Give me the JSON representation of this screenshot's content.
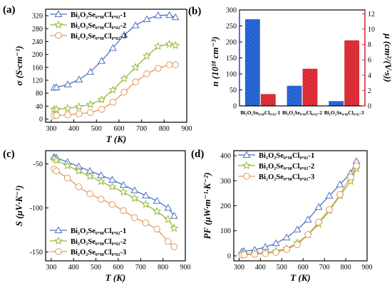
{
  "colors": {
    "blue": "#4a72c6",
    "green": "#9ab83a",
    "orange": "#e09a5e",
    "bar_blue": "#1f5fd0",
    "bar_red": "#d9262e",
    "axis": "#000000",
    "right_axis": "#d9262e",
    "left_axis_bar": "#2255cc"
  },
  "chart_data": [
    {
      "panel": "(a)",
      "type": "line",
      "xlabel": "T (K)",
      "ylabel": "σ (S·cm⁻¹)",
      "xlim": [
        275,
        900
      ],
      "ylim": [
        -10,
        340
      ],
      "xticks": [
        300,
        400,
        500,
        600,
        700,
        800,
        900
      ],
      "yticks": [
        0,
        40,
        80,
        120,
        160,
        200,
        240,
        280,
        320
      ],
      "legend_position": "top-left",
      "series": [
        {
          "name": "Bi₂O₂Se₀.₉₈Cl₀.₀₂-1",
          "color": "blue",
          "marker": "triangle",
          "x": [
            313,
            323,
            373,
            423,
            473,
            523,
            573,
            623,
            673,
            723,
            773,
            823,
            850
          ],
          "y": [
            97,
            98,
            107,
            122,
            146,
            180,
            220,
            260,
            290,
            309,
            321,
            322,
            315
          ]
        },
        {
          "name": "Bi₂O₂Se₀.₉₈Cl₀.₀₂-2",
          "color": "green",
          "marker": "star",
          "x": [
            313,
            323,
            373,
            423,
            473,
            523,
            573,
            623,
            673,
            723,
            773,
            823,
            850
          ],
          "y": [
            30,
            30,
            33,
            38,
            45,
            60,
            90,
            125,
            160,
            195,
            225,
            232,
            228
          ]
        },
        {
          "name": "Bi₂O₂Se₀.₉₈Cl₀.₀₂-3",
          "color": "orange",
          "marker": "circle",
          "x": [
            313,
            323,
            373,
            423,
            473,
            523,
            573,
            623,
            673,
            723,
            773,
            823,
            850
          ],
          "y": [
            10,
            11,
            13,
            16,
            20,
            30,
            52,
            83,
            115,
            140,
            157,
            168,
            168
          ]
        }
      ]
    },
    {
      "panel": "(b)",
      "type": "bar",
      "ylabel": "n (10¹⁸ cm⁻³)",
      "y2label": "μ (cm²/(V·s))",
      "categories": [
        "Bi₂O₂Se₀.₉₈Cl₀.₀₂-1",
        "Bi₂O₂Se₀.₉₈Cl₀.₀₂-2",
        "Bi₂O₂Se₀.₉₈Cl₀.₀₂-3"
      ],
      "ylim": [
        0,
        300
      ],
      "y2lim": [
        0,
        12.5
      ],
      "yticks": [
        0,
        50,
        100,
        150,
        200,
        250,
        300
      ],
      "y2ticks": [
        0,
        2,
        4,
        6,
        8,
        10,
        12
      ],
      "series": [
        {
          "name": "n",
          "color": "bar_blue",
          "axis": "left",
          "values": [
            270,
            62,
            14
          ]
        },
        {
          "name": "μ",
          "color": "bar_red",
          "axis": "right",
          "values": [
            1.5,
            4.8,
            8.5
          ]
        }
      ]
    },
    {
      "panel": "(c)",
      "type": "line",
      "xlabel": "T (K)",
      "ylabel": "S (μV·K⁻¹)",
      "xlim": [
        275,
        900
      ],
      "ylim": [
        -160,
        -35
      ],
      "xticks": [
        300,
        400,
        500,
        600,
        700,
        800,
        900
      ],
      "yticks": [
        -150,
        -100,
        -50
      ],
      "legend_position": "bottom-left",
      "series": [
        {
          "name": "Bi₂O₂Se₀.₉₈Cl₀.₀₂-1",
          "color": "blue",
          "marker": "triangle",
          "x": [
            313,
            323,
            373,
            423,
            473,
            523,
            573,
            623,
            673,
            723,
            773,
            823,
            850
          ],
          "y": [
            -42,
            -43,
            -48,
            -53,
            -58,
            -63,
            -68,
            -74,
            -80,
            -86,
            -92,
            -100,
            -109
          ]
        },
        {
          "name": "Bi₂O₂Se₀.₉₈Cl₀.₀₂-2",
          "color": "green",
          "marker": "star",
          "x": [
            313,
            323,
            373,
            423,
            473,
            523,
            573,
            623,
            673,
            723,
            773,
            823,
            850
          ],
          "y": [
            -44,
            -46,
            -52,
            -58,
            -64,
            -70,
            -76,
            -82,
            -89,
            -96,
            -104,
            -113,
            -123
          ]
        },
        {
          "name": "Bi₂O₂Se₀.₉₈Cl₀.₀₂-3",
          "color": "orange",
          "marker": "circle",
          "x": [
            313,
            323,
            373,
            423,
            473,
            523,
            573,
            623,
            673,
            723,
            773,
            823,
            850
          ],
          "y": [
            -56,
            -58,
            -66,
            -76,
            -84,
            -90,
            -96,
            -103,
            -111,
            -117,
            -124,
            -138,
            -144
          ]
        }
      ]
    },
    {
      "panel": "(d)",
      "type": "line",
      "xlabel": "T (K)",
      "ylabel": "PF (μW·m⁻¹·K⁻²)",
      "xlim": [
        275,
        900
      ],
      "ylim": [
        -20,
        420
      ],
      "xticks": [
        300,
        400,
        500,
        600,
        700,
        800,
        900
      ],
      "yticks": [
        0,
        100,
        200,
        300,
        400
      ],
      "legend_position": "top-left",
      "series": [
        {
          "name": "Bi₂O₂Se₀.₉₈Cl₀.₀₂-1",
          "color": "blue",
          "marker": "triangle",
          "x": [
            313,
            323,
            373,
            423,
            473,
            523,
            573,
            623,
            673,
            723,
            773,
            823,
            850
          ],
          "y": [
            17,
            18,
            24,
            35,
            50,
            73,
            105,
            145,
            195,
            240,
            285,
            330,
            378
          ]
        },
        {
          "name": "Bi₂O₂Se₀.₉₈Cl₀.₀₂-2",
          "color": "green",
          "marker": "star",
          "x": [
            313,
            323,
            373,
            423,
            473,
            523,
            573,
            623,
            673,
            723,
            773,
            823,
            850
          ],
          "y": [
            6,
            6,
            9,
            13,
            19,
            29,
            52,
            84,
            127,
            180,
            240,
            298,
            348
          ]
        },
        {
          "name": "Bi₂O₂Se₀.₉₈Cl₀.₀₂-3",
          "color": "orange",
          "marker": "circle",
          "x": [
            313,
            323,
            373,
            423,
            473,
            523,
            573,
            623,
            673,
            723,
            773,
            823,
            850
          ],
          "y": [
            3,
            4,
            6,
            9,
            14,
            26,
            45,
            85,
            135,
            185,
            245,
            315,
            360
          ]
        }
      ]
    }
  ]
}
